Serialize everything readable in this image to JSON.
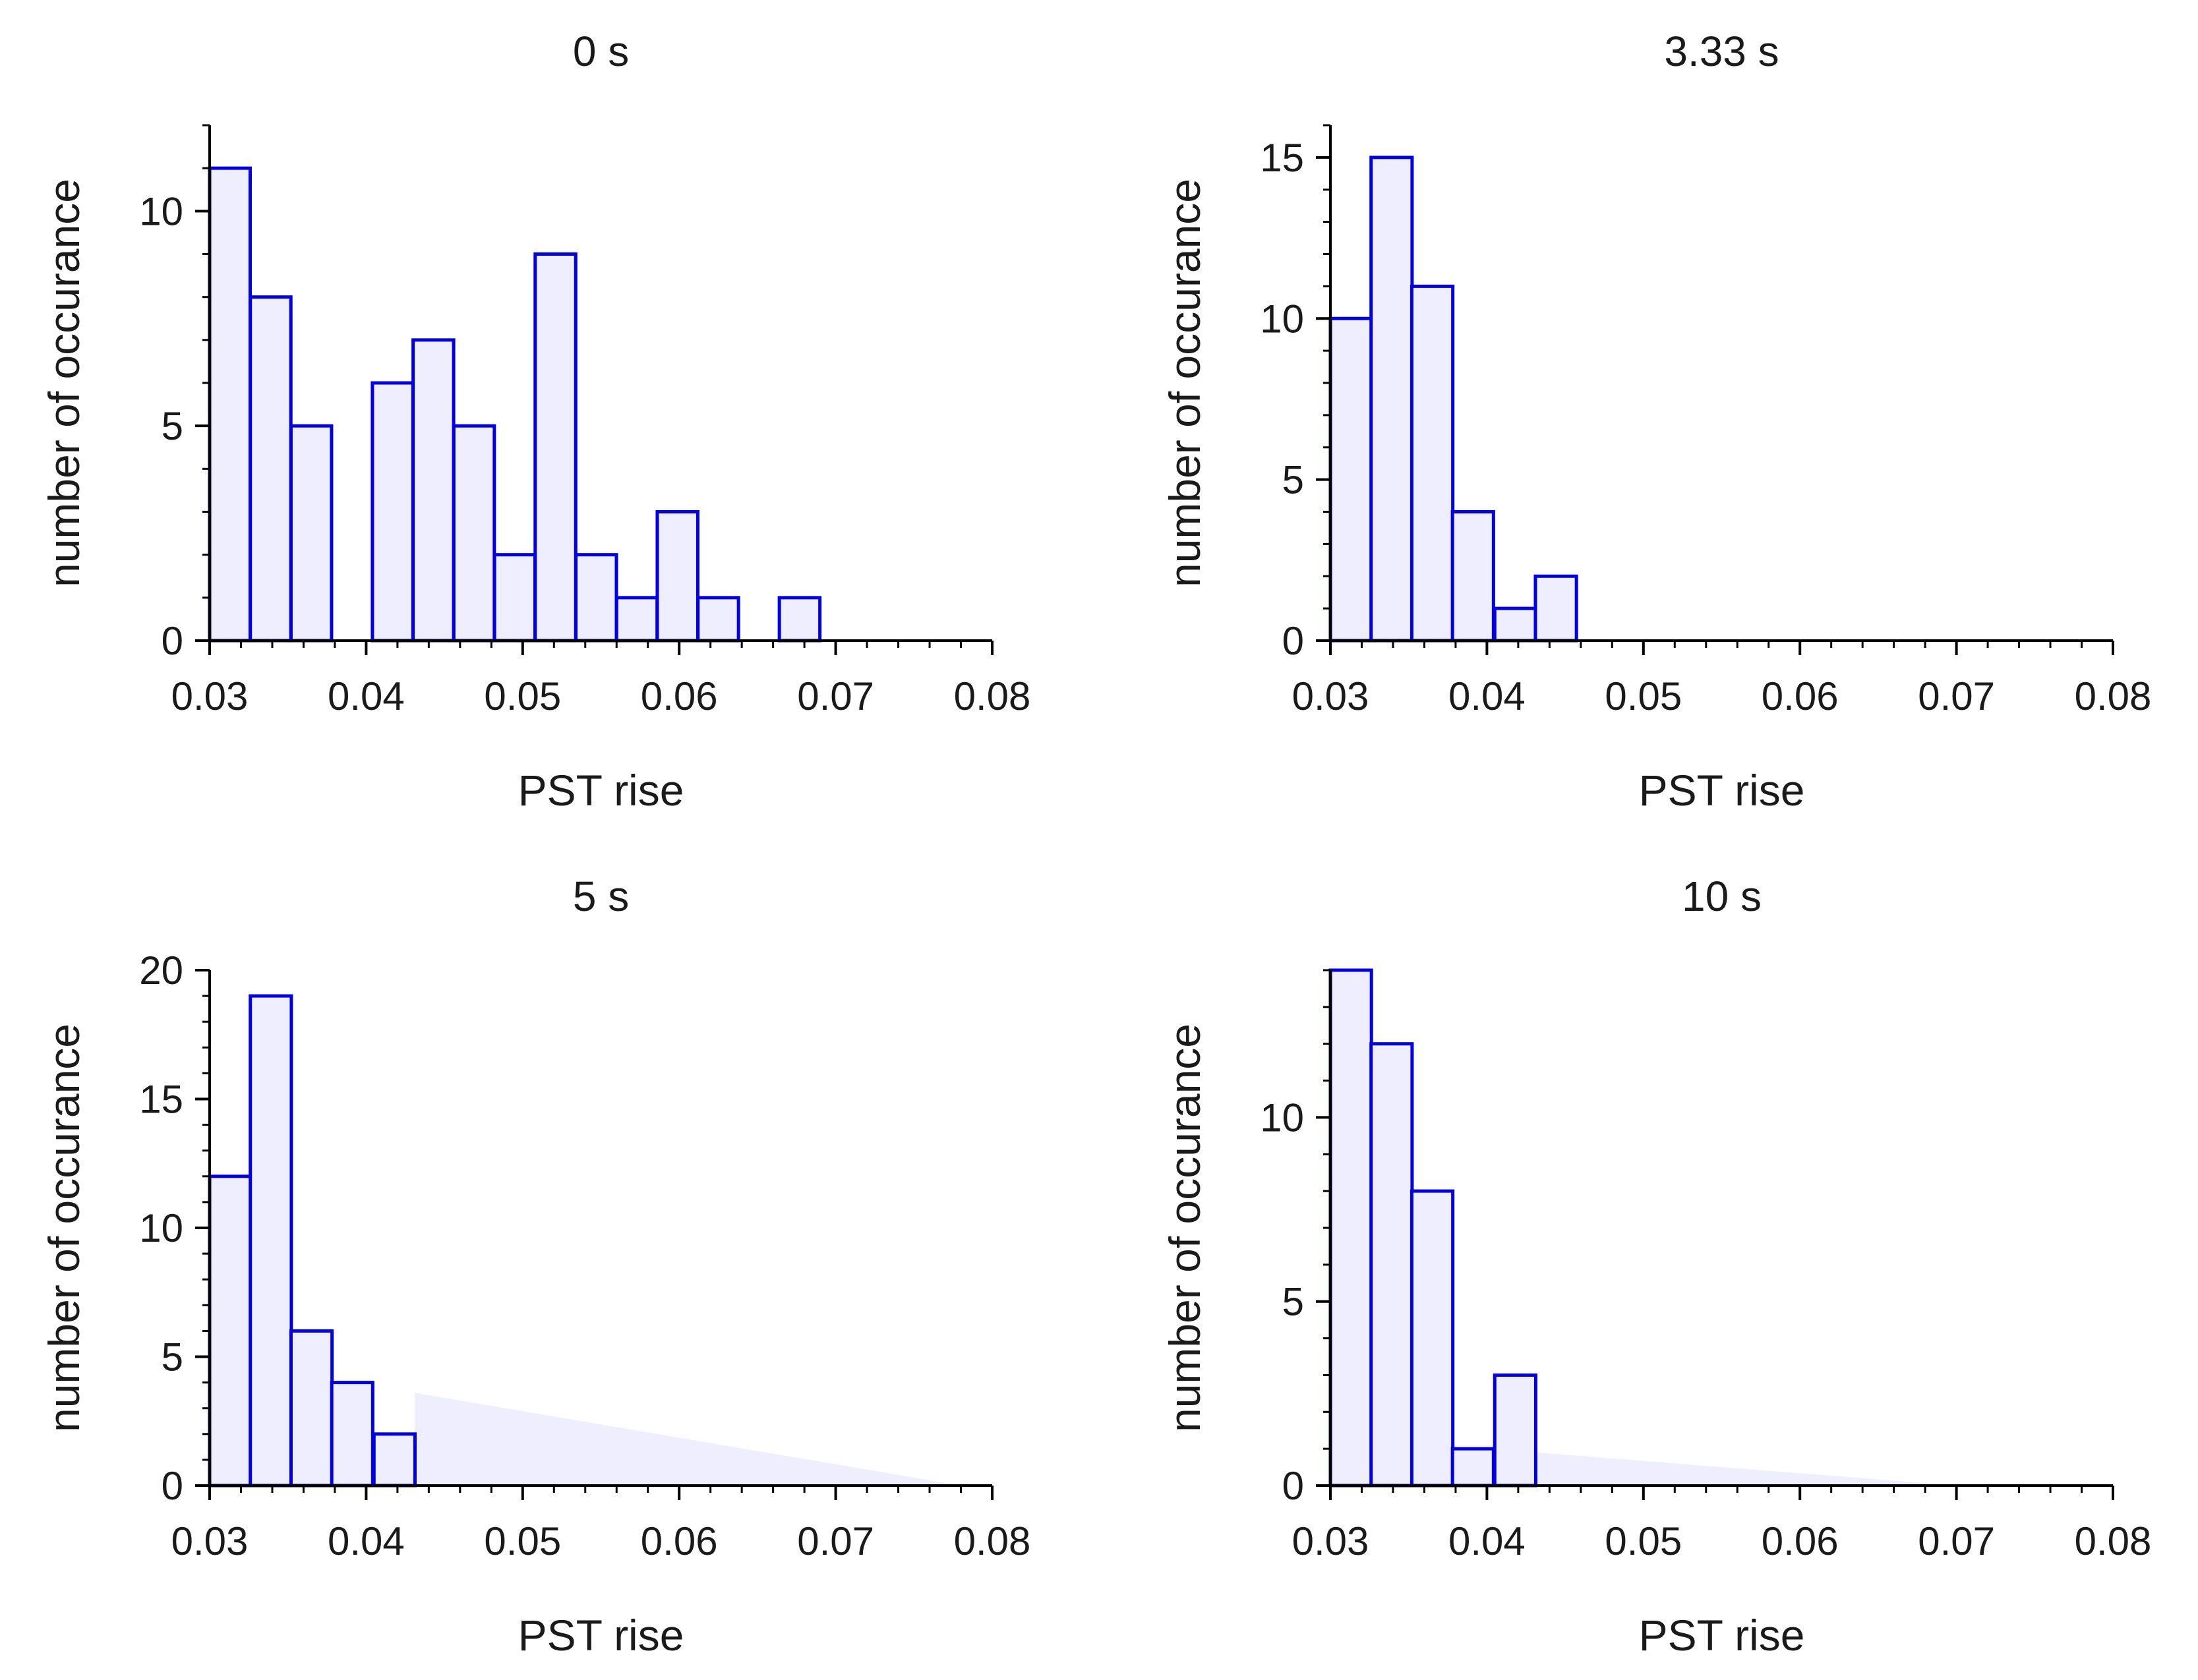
{
  "chart_data": [
    {
      "type": "bar",
      "title": "0 s",
      "xlabel": "PST rise",
      "ylabel": "number of occurance",
      "xlim": [
        0.03,
        0.08
      ],
      "ylim": [
        0,
        12
      ],
      "xticks": [
        "0.03",
        "0.04",
        "0.05",
        "0.06",
        "0.07",
        "0.08"
      ],
      "yticks": [
        "0",
        "5",
        "10"
      ],
      "ytick_values": [
        0,
        5,
        10
      ],
      "y_minor_step": 1,
      "bin_width": 0.00259,
      "bins": [
        {
          "x": 0.03,
          "value": 11
        },
        {
          "x": 0.0326,
          "value": 8
        },
        {
          "x": 0.0352,
          "value": 5
        },
        {
          "x": 0.0404,
          "value": 6
        },
        {
          "x": 0.043,
          "value": 7
        },
        {
          "x": 0.0456,
          "value": 5
        },
        {
          "x": 0.0482,
          "value": 2
        },
        {
          "x": 0.0508,
          "value": 9
        },
        {
          "x": 0.0534,
          "value": 2
        },
        {
          "x": 0.056,
          "value": 1
        },
        {
          "x": 0.0586,
          "value": 3
        },
        {
          "x": 0.0612,
          "value": 1
        },
        {
          "x": 0.0664,
          "value": 1
        }
      ],
      "bar_color": "#0000e6",
      "fill_color": "#eeeeff"
    },
    {
      "type": "bar",
      "title": "3.33 s",
      "xlabel": "PST rise",
      "ylabel": "number of occurance",
      "xlim": [
        0.03,
        0.08
      ],
      "ylim": [
        0,
        16
      ],
      "xticks": [
        "0.03",
        "0.04",
        "0.05",
        "0.06",
        "0.07",
        "0.08"
      ],
      "yticks": [
        "0",
        "5",
        "10",
        "15"
      ],
      "ytick_values": [
        0,
        5,
        10,
        15
      ],
      "y_minor_step": 1,
      "bin_width": 0.00262,
      "bins": [
        {
          "x": 0.03,
          "value": 10
        },
        {
          "x": 0.0326,
          "value": 15
        },
        {
          "x": 0.0352,
          "value": 11
        },
        {
          "x": 0.0378,
          "value": 4
        },
        {
          "x": 0.0405,
          "value": 1
        },
        {
          "x": 0.0431,
          "value": 2
        }
      ],
      "bar_color": "#0000e6",
      "fill_color": "#eeeeff"
    },
    {
      "type": "bar",
      "title": "5 s",
      "xlabel": "PST rise",
      "ylabel": "number of occurance",
      "xlim": [
        0.03,
        0.08
      ],
      "ylim": [
        0,
        20
      ],
      "xticks": [
        "0.03",
        "0.04",
        "0.05",
        "0.06",
        "0.07",
        "0.08"
      ],
      "yticks": [
        "0",
        "5",
        "10",
        "15",
        "20"
      ],
      "ytick_values": [
        0,
        5,
        10,
        15,
        20
      ],
      "y_minor_step": 1,
      "bin_width": 0.00262,
      "bins": [
        {
          "x": 0.03,
          "value": 12
        },
        {
          "x": 0.0326,
          "value": 19
        },
        {
          "x": 0.0352,
          "value": 6
        },
        {
          "x": 0.0378,
          "value": 4
        },
        {
          "x": 0.0405,
          "value": 2
        }
      ],
      "background_fill": [
        [
          0.0431,
          3.6
        ],
        [
          0.078,
          0
        ]
      ],
      "bar_color": "#0000e6",
      "fill_color": "#eeeeff"
    },
    {
      "type": "bar",
      "title": "10 s",
      "xlabel": "PST rise",
      "ylabel": "number of occurance",
      "xlim": [
        0.03,
        0.08
      ],
      "ylim": [
        0,
        14
      ],
      "xticks": [
        "0.03",
        "0.04",
        "0.05",
        "0.06",
        "0.07",
        "0.08"
      ],
      "yticks": [
        "0",
        "5",
        "10"
      ],
      "ytick_values": [
        0,
        5,
        10
      ],
      "y_minor_step": 1,
      "bin_width": 0.00262,
      "bins": [
        {
          "x": 0.03,
          "value": 14
        },
        {
          "x": 0.0326,
          "value": 12
        },
        {
          "x": 0.0352,
          "value": 8
        },
        {
          "x": 0.0378,
          "value": 1
        },
        {
          "x": 0.0405,
          "value": 3
        }
      ],
      "background_fill": [
        [
          0.0431,
          0.9
        ],
        [
          0.07,
          0
        ]
      ],
      "bar_color": "#0000e6",
      "fill_color": "#eeeeff"
    }
  ]
}
